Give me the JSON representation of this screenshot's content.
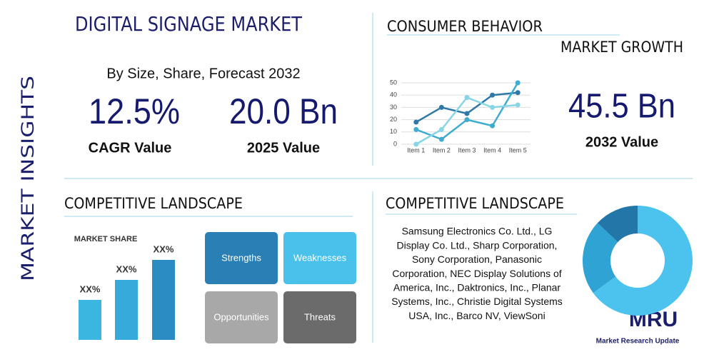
{
  "side_label": "MARKET INSIGHTS",
  "title": "DIGITAL SIGNAGE MARKET",
  "subtitle": "By Size, Share, Forecast 2032",
  "stats": [
    {
      "value": "12.5%",
      "label": "CAGR Value"
    },
    {
      "value": "20.0 Bn",
      "label": "2025 Value"
    }
  ],
  "consumer_heading": "CONSUMER BEHAVIOR",
  "growth_heading": "MARKET GROWTH",
  "growth_stat": {
    "value": "45.5 Bn",
    "label": "2032 Value"
  },
  "competitive_heading_left": "COMPETITIVE LANDSCAPE",
  "competitive_heading_right": "COMPETITIVE LANDSCAPE",
  "swot": [
    "Strengths",
    "Weaknesses",
    "Opportunities",
    "Threats"
  ],
  "companies": [
    "Samsung Electronics Co. Ltd., LG",
    "Display Co. Ltd., Sharp Corporation,",
    "Sony Corporation, Panasonic",
    "Corporation, NEC Display Solutions of",
    "America, Inc., Daktronics, Inc., Planar",
    "Systems, Inc., Christie Digital Systems",
    "USA, Inc., Barco NV, ViewSoni"
  ],
  "logo": {
    "mark": "MRU",
    "name": "Market Research Update"
  },
  "chart_data": [
    {
      "type": "line",
      "categories": [
        "Item 1",
        "Item 2",
        "Item 3",
        "Item 4",
        "Item 5"
      ],
      "ylim": [
        0,
        50
      ],
      "yticks": [
        0,
        10,
        20,
        30,
        40,
        50
      ],
      "grid": true,
      "series": [
        {
          "color": "#2e79a8",
          "values": [
            18,
            30,
            25,
            40,
            42
          ]
        },
        {
          "color": "#3eaccf",
          "values": [
            12,
            4,
            20,
            15,
            50
          ]
        },
        {
          "color": "#86d6e8",
          "values": [
            0,
            12,
            38,
            30,
            32
          ]
        }
      ]
    },
    {
      "type": "bar",
      "title": "MARKET SHARE",
      "values": [
        1,
        1.5,
        2
      ],
      "value_labels": [
        "XX%",
        "XX%",
        "XX%"
      ],
      "colors": [
        "#3bb6e0",
        "#35aadb",
        "#2b8cc4"
      ]
    },
    {
      "type": "donut",
      "values": [
        65,
        22,
        13
      ],
      "colors": [
        "#4cc3ee",
        "#2fa3d4",
        "#2277a8"
      ]
    }
  ]
}
